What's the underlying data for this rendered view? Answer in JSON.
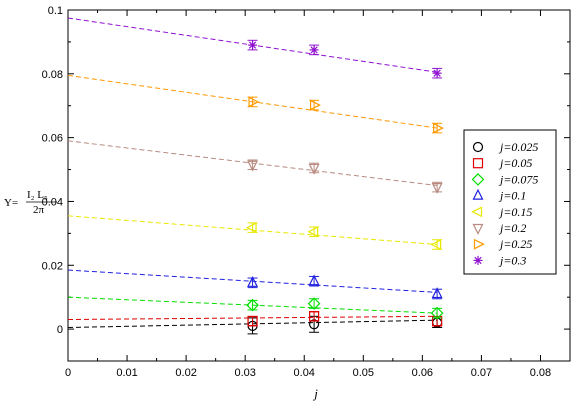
{
  "chart_data": {
    "type": "scatter",
    "title": "",
    "xlabel": "j",
    "ylabel": {
      "symbol": "Υ=",
      "numerator": "I₂ L₅",
      "denominator": "2π"
    },
    "xlim": [
      0,
      0.085
    ],
    "ylim": [
      -0.01,
      0.1
    ],
    "x_ticks": [
      "0",
      "0.01",
      "0.02",
      "0.03",
      "0.04",
      "0.05",
      "0.06",
      "0.07",
      "0.08"
    ],
    "y_ticks": [
      "0",
      "0.02",
      "0.04",
      "0.06",
      "0.08",
      "0.1"
    ],
    "grid": false,
    "legend_position": "right",
    "x": [
      0.03125,
      0.04167,
      0.0625
    ],
    "fit_x_range": [
      0,
      0.0625
    ],
    "series": [
      {
        "name": "j=0.025",
        "marker": "circle",
        "color": "#000000",
        "values": [
          0.001,
          0.0015,
          0.002
        ],
        "errors": [
          0.0025,
          0.0025,
          0.0015
        ],
        "fit": [
          0.0005,
          0.0028
        ]
      },
      {
        "name": "j=0.05",
        "marker": "square",
        "color": "#e00000",
        "values": [
          0.0025,
          0.004,
          0.0025
        ],
        "errors": [
          0.0015,
          0.0015,
          0.0015
        ],
        "fit": [
          0.003,
          0.004
        ]
      },
      {
        "name": "j=0.075",
        "marker": "diamond",
        "color": "#00dd00",
        "values": [
          0.0075,
          0.008,
          0.005
        ],
        "errors": [
          0.0015,
          0.0015,
          0.0015
        ],
        "fit": [
          0.01,
          0.005
        ]
      },
      {
        "name": "j=0.1",
        "marker": "triangle-up",
        "color": "#2020e0",
        "values": [
          0.0145,
          0.015,
          0.011
        ],
        "errors": [
          0.0015,
          0.0015,
          0.0015
        ],
        "fit": [
          0.0185,
          0.0115
        ]
      },
      {
        "name": "j=0.15",
        "marker": "triangle-left",
        "color": "#e8e800",
        "values": [
          0.0318,
          0.0305,
          0.0265
        ],
        "errors": [
          0.0015,
          0.0015,
          0.0015
        ],
        "fit": [
          0.0355,
          0.0265
        ]
      },
      {
        "name": "j=0.2",
        "marker": "triangle-down",
        "color": "#b88a80",
        "values": [
          0.0515,
          0.0505,
          0.0445
        ],
        "errors": [
          0.0015,
          0.0015,
          0.0015
        ],
        "fit": [
          0.059,
          0.045
        ]
      },
      {
        "name": "j=0.25",
        "marker": "triangle-right",
        "color": "#ff9900",
        "values": [
          0.0712,
          0.0702,
          0.063
        ],
        "errors": [
          0.0015,
          0.0015,
          0.0015
        ],
        "fit": [
          0.0795,
          0.063
        ]
      },
      {
        "name": "j=0.3",
        "marker": "star",
        "color": "#9010d0",
        "values": [
          0.089,
          0.0875,
          0.0802
        ],
        "errors": [
          0.0015,
          0.0015,
          0.0015
        ],
        "fit": [
          0.0975,
          0.0805
        ]
      }
    ]
  }
}
